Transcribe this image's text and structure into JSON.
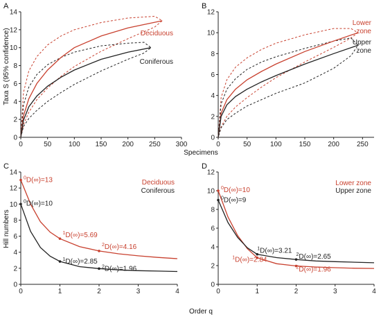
{
  "colors": {
    "red": "#c8402e",
    "black": "#222222"
  },
  "shared_labels": {
    "x_top": "Specimens",
    "y_top": "Taxa S (95% confidence)",
    "x_bottom": "Order q",
    "y_bottom": "Hill numbers"
  },
  "chart_data": [
    {
      "panel": "A",
      "type": "line",
      "xlim": [
        0,
        300
      ],
      "ylim": [
        0,
        14
      ],
      "xticks": [
        "0",
        "50",
        "100",
        "150",
        "200",
        "250",
        "300"
      ],
      "yticks": [
        "0",
        "2",
        "4",
        "6",
        "8",
        "10",
        "12",
        "14"
      ],
      "legend": [
        "Deciduous",
        "Coniferous"
      ],
      "series": [
        {
          "name": "Deciduous",
          "color": "red",
          "style": "solid",
          "x": [
            0,
            5,
            15,
            30,
            50,
            75,
            100,
            150,
            200,
            264
          ],
          "y": [
            0,
            2.4,
            4.3,
            6.0,
            7.5,
            8.9,
            10.0,
            11.3,
            12.2,
            13.0
          ]
        },
        {
          "name": "Coniferous",
          "color": "black",
          "style": "solid",
          "x": [
            0,
            5,
            15,
            30,
            50,
            75,
            100,
            150,
            200,
            243
          ],
          "y": [
            0,
            1.9,
            3.4,
            4.6,
            5.7,
            6.7,
            7.5,
            8.7,
            9.5,
            10.0
          ]
        }
      ],
      "bands": [
        {
          "color": "red",
          "x": [
            0,
            5,
            15,
            30,
            50,
            75,
            100,
            150,
            200,
            250,
            264
          ],
          "lower": [
            0,
            1.4,
            2.8,
            4.2,
            5.5,
            6.8,
            7.9,
            9.6,
            11.0,
            12.3,
            13.0
          ],
          "upper": [
            0,
            5.0,
            7.4,
            9.0,
            10.3,
            11.3,
            12.0,
            12.8,
            13.3,
            13.5,
            13.0
          ]
        },
        {
          "color": "black",
          "x": [
            0,
            5,
            15,
            30,
            50,
            75,
            100,
            150,
            200,
            230,
            243
          ],
          "lower": [
            0,
            1.2,
            2.1,
            3.0,
            4.0,
            5.0,
            5.9,
            7.4,
            8.7,
            9.4,
            10.0
          ],
          "upper": [
            0,
            3.6,
            5.6,
            7.0,
            8.1,
            8.9,
            9.5,
            10.2,
            10.5,
            10.6,
            10.0
          ]
        }
      ]
    },
    {
      "panel": "B",
      "type": "line",
      "xlim": [
        0,
        270
      ],
      "ylim": [
        0,
        12
      ],
      "xticks": [
        "0",
        "50",
        "100",
        "150",
        "200",
        "250"
      ],
      "yticks": [
        "0",
        "2",
        "4",
        "6",
        "8",
        "10",
        "12"
      ],
      "legend": [
        "Lower zone",
        "Upper zone"
      ],
      "series": [
        {
          "name": "Lower zone",
          "color": "red",
          "style": "solid",
          "x": [
            0,
            5,
            15,
            30,
            50,
            75,
            100,
            150,
            200,
            242
          ],
          "y": [
            0,
            2.3,
            3.6,
            4.6,
            5.5,
            6.3,
            7.0,
            8.2,
            9.2,
            10.0
          ]
        },
        {
          "name": "Upper zone",
          "color": "black",
          "style": "solid",
          "x": [
            0,
            5,
            15,
            30,
            50,
            75,
            100,
            150,
            200,
            242
          ],
          "y": [
            0,
            2.0,
            3.1,
            3.9,
            4.6,
            5.3,
            5.9,
            7.0,
            8.0,
            8.8
          ]
        }
      ],
      "bands": [
        {
          "color": "red",
          "x": [
            0,
            5,
            15,
            30,
            50,
            75,
            100,
            150,
            200,
            230,
            242
          ],
          "lower": [
            0,
            1.0,
            2.0,
            2.9,
            3.8,
            4.8,
            5.7,
            7.2,
            8.6,
            9.5,
            10.0
          ],
          "upper": [
            0,
            3.8,
            5.5,
            6.7,
            7.6,
            8.4,
            9.0,
            9.8,
            10.4,
            10.4,
            10.0
          ]
        },
        {
          "color": "black",
          "x": [
            0,
            5,
            15,
            30,
            50,
            75,
            100,
            150,
            200,
            230,
            242
          ],
          "lower": [
            0,
            0.9,
            1.7,
            2.3,
            3.0,
            3.6,
            4.2,
            5.2,
            6.6,
            7.8,
            8.8
          ],
          "upper": [
            0,
            3.2,
            4.6,
            5.6,
            6.5,
            7.2,
            7.7,
            8.5,
            9.2,
            9.5,
            8.8
          ]
        }
      ]
    },
    {
      "panel": "C",
      "type": "line",
      "xlim": [
        0,
        4
      ],
      "ylim": [
        0,
        14
      ],
      "xticks": [
        "0",
        "1",
        "2",
        "3",
        "4"
      ],
      "yticks": [
        "0",
        "2",
        "4",
        "6",
        "8",
        "10",
        "12",
        "14"
      ],
      "legend": [
        "Deciduous",
        "Coniferous"
      ],
      "series": [
        {
          "name": "Deciduous",
          "color": "red",
          "style": "solid",
          "x": [
            0,
            0.25,
            0.5,
            0.75,
            1.0,
            1.5,
            2.0,
            2.5,
            3.0,
            3.5,
            4.0
          ],
          "y": [
            13,
            10.0,
            7.8,
            6.5,
            5.69,
            4.7,
            4.16,
            3.8,
            3.55,
            3.35,
            3.2
          ]
        },
        {
          "name": "Coniferous",
          "color": "black",
          "style": "solid",
          "x": [
            0,
            0.25,
            0.5,
            0.75,
            1.0,
            1.5,
            2.0,
            2.5,
            3.0,
            3.5,
            4.0
          ],
          "y": [
            10,
            6.6,
            4.6,
            3.5,
            2.85,
            2.2,
            1.96,
            1.8,
            1.7,
            1.65,
            1.6
          ]
        }
      ],
      "points": [
        {
          "color": "red",
          "x": 0,
          "y": 13,
          "sup": "0",
          "text": "D(∞)=13"
        },
        {
          "color": "red",
          "x": 1,
          "y": 5.69,
          "sup": "1",
          "text": "D(∞)=5.69"
        },
        {
          "color": "red",
          "x": 2,
          "y": 4.16,
          "sup": "2",
          "text": "D(∞)=4.16"
        },
        {
          "color": "black",
          "x": 0,
          "y": 10,
          "sup": "0",
          "text": "D(∞)=10"
        },
        {
          "color": "black",
          "x": 1,
          "y": 2.85,
          "sup": "1",
          "text": "D(∞)=2.85"
        },
        {
          "color": "black",
          "x": 2,
          "y": 1.96,
          "sup": "2",
          "text": "D(∞)=1.96"
        }
      ]
    },
    {
      "panel": "D",
      "type": "line",
      "xlim": [
        0,
        4
      ],
      "ylim": [
        0,
        12
      ],
      "xticks": [
        "0",
        "1",
        "2",
        "3",
        "4"
      ],
      "yticks": [
        "0",
        "2",
        "4",
        "6",
        "8",
        "10",
        "12"
      ],
      "legend": [
        "Lower zone",
        "Upper zone"
      ],
      "series": [
        {
          "name": "Lower zone",
          "color": "red",
          "style": "solid",
          "x": [
            0,
            0.25,
            0.5,
            0.75,
            1.0,
            1.5,
            2.0,
            2.5,
            3.0,
            3.5,
            4.0
          ],
          "y": [
            10,
            7.2,
            5.2,
            3.8,
            2.84,
            2.2,
            1.96,
            1.85,
            1.78,
            1.72,
            1.7
          ]
        },
        {
          "name": "Upper zone",
          "color": "black",
          "style": "solid",
          "x": [
            0,
            0.25,
            0.5,
            0.75,
            1.0,
            1.5,
            2.0,
            2.5,
            3.0,
            3.5,
            4.0
          ],
          "y": [
            9,
            6.6,
            5.0,
            3.9,
            3.21,
            2.85,
            2.65,
            2.5,
            2.42,
            2.36,
            2.3
          ]
        }
      ],
      "points": [
        {
          "color": "red",
          "x": 0,
          "y": 10,
          "sup": "0",
          "text": "D(∞)=10"
        },
        {
          "color": "red",
          "x": 1,
          "y": 2.84,
          "sup": "1",
          "text": "D(∞)=2.84"
        },
        {
          "color": "red",
          "x": 2,
          "y": 1.96,
          "sup": "2",
          "text": "D(∞)=1.96"
        },
        {
          "color": "black",
          "x": 0,
          "y": 9,
          "sup": "0",
          "text": "D(∞)=9"
        },
        {
          "color": "black",
          "x": 1,
          "y": 3.21,
          "sup": "1",
          "text": "D(∞)=3.21"
        },
        {
          "color": "black",
          "x": 2,
          "y": 2.65,
          "sup": "2",
          "text": "D(∞)=2.65"
        }
      ]
    }
  ]
}
